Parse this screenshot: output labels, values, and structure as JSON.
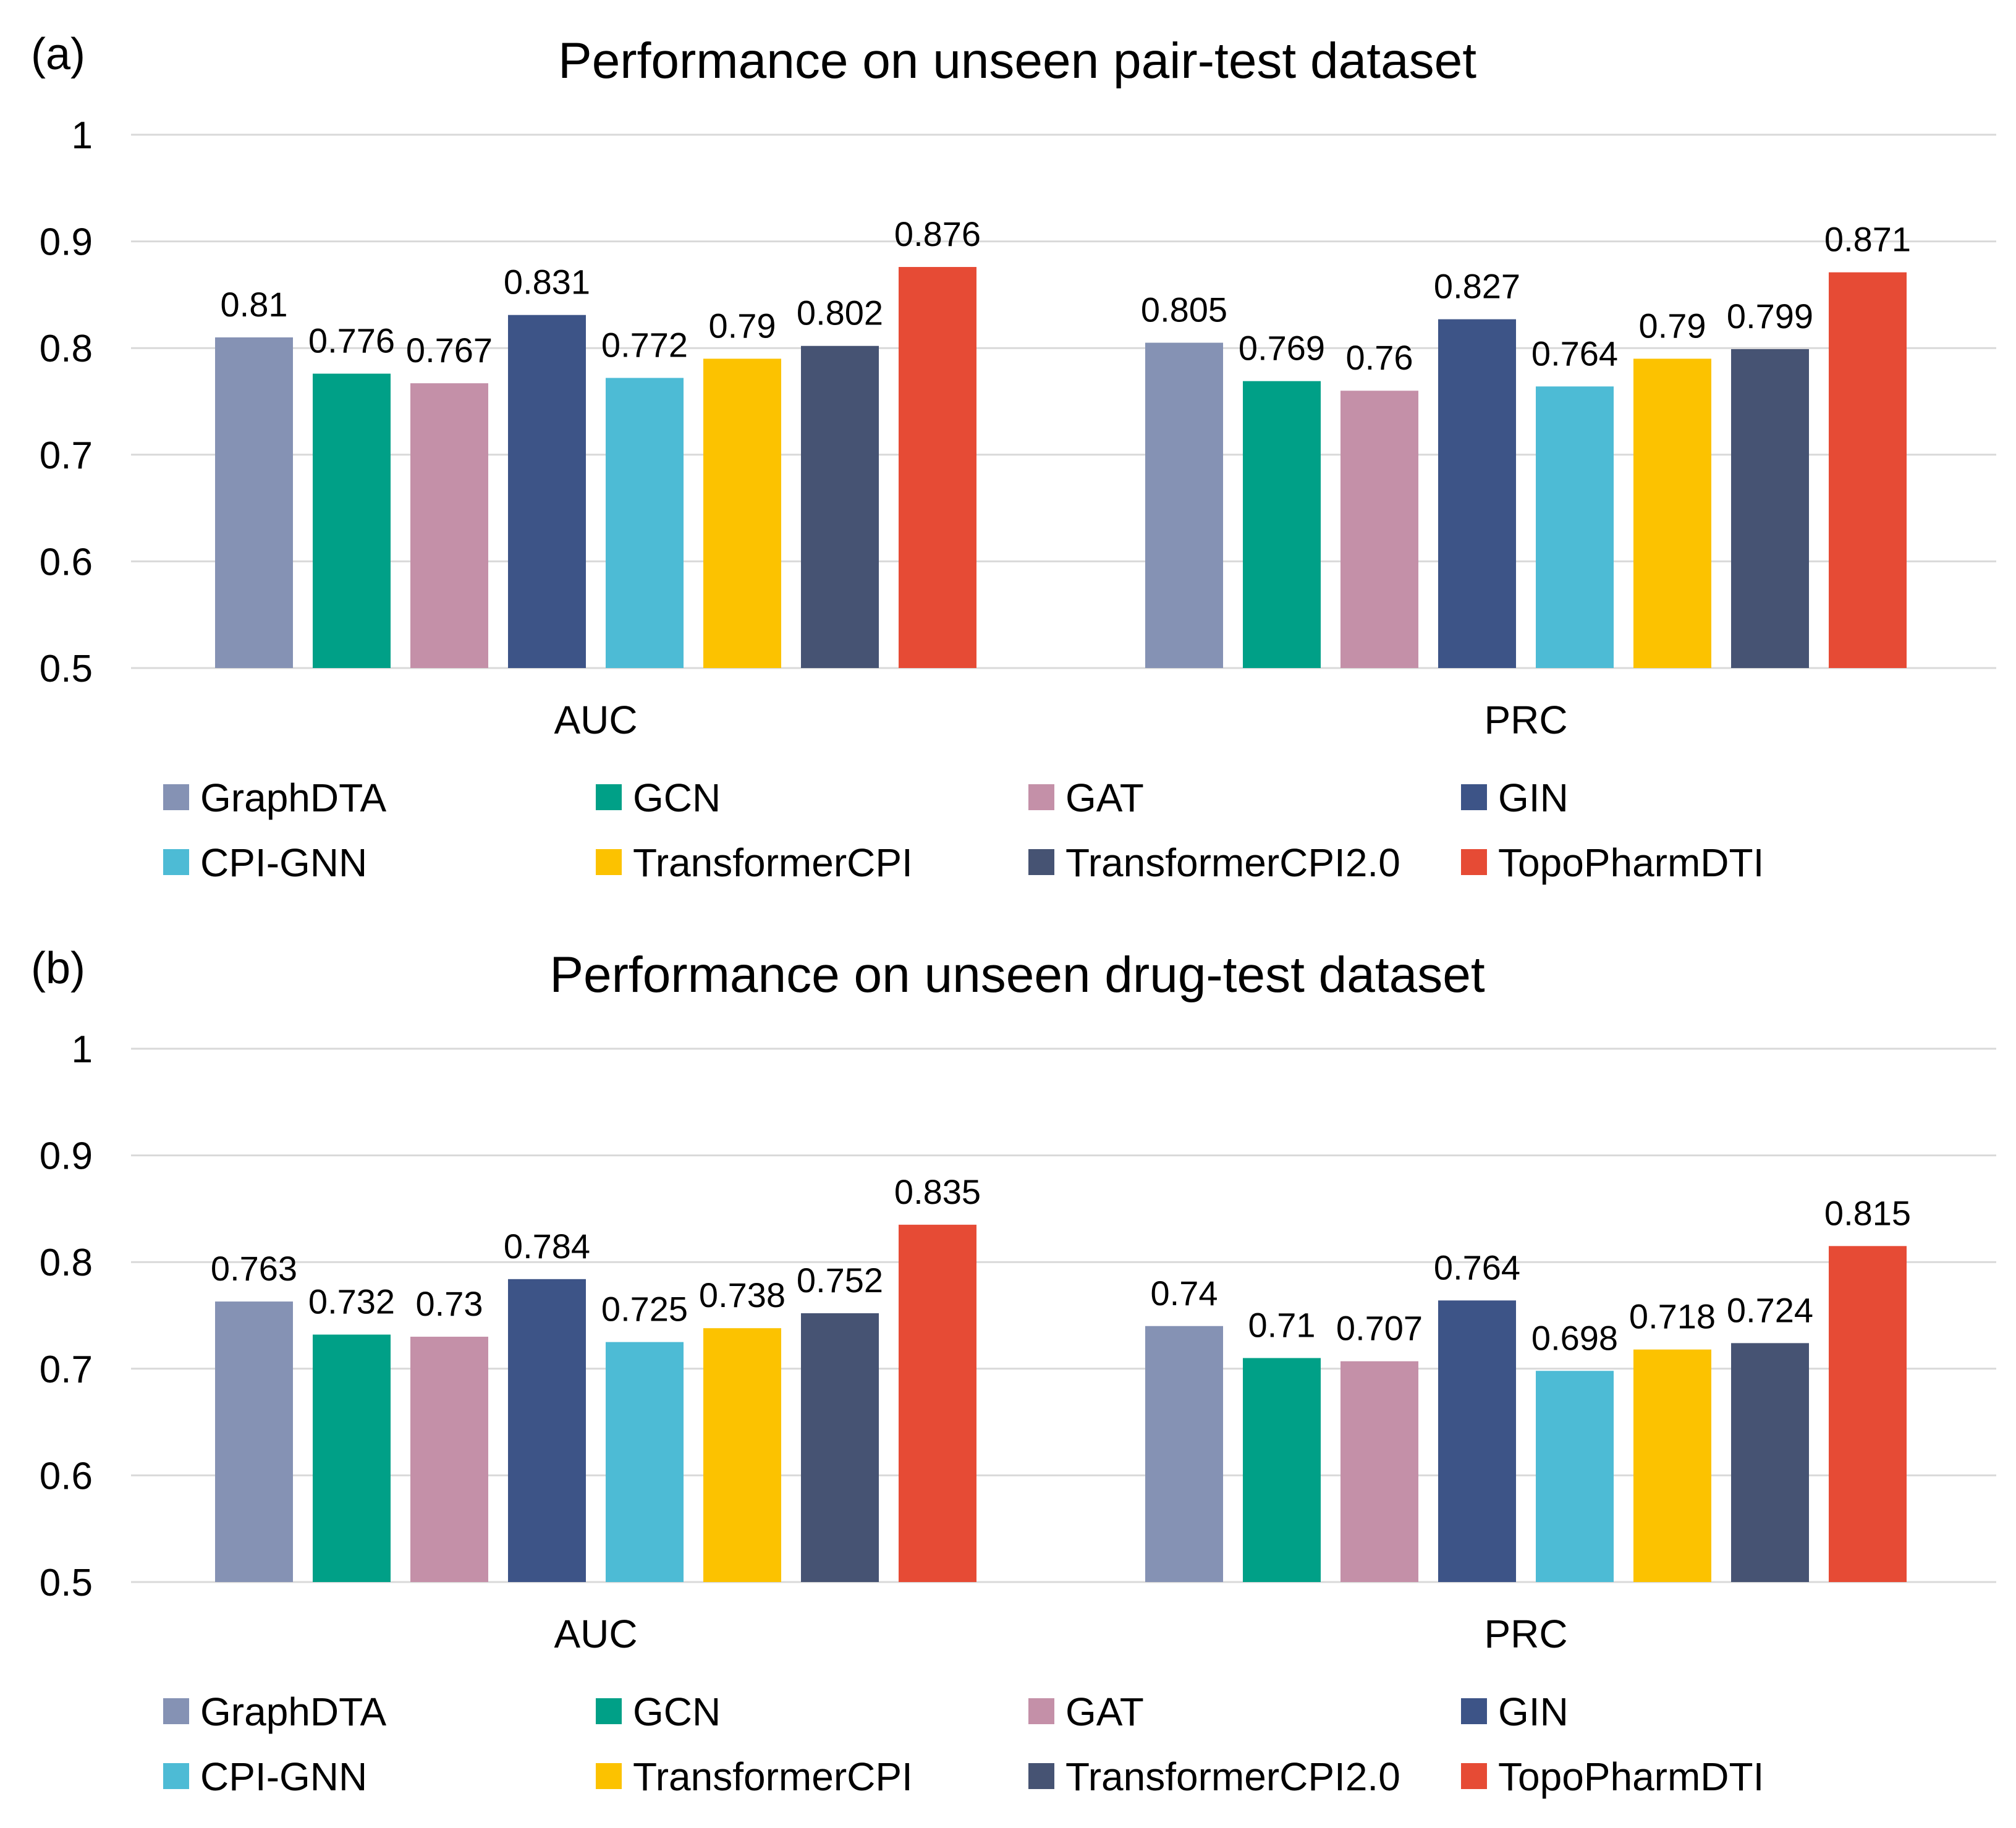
{
  "series_colors": {
    "GraphDTA": "#8592b4",
    "GCN": "#00a087",
    "GAT": "#c490a8",
    "GIN": "#3d5487",
    "CPI-GNN": "#4dbbd5",
    "TransformerCPI": "#fcc200",
    "TransformerCPI2.0": "#465373",
    "TopoPharmDTI": "#e64b35"
  },
  "chart_data": [
    {
      "panel": "(a)",
      "type": "bar",
      "title": "Performance on unseen pair-test dataset",
      "xlabel": "",
      "ylabel": "",
      "categories": [
        "AUC",
        "PRC"
      ],
      "ylim": [
        0.5,
        1
      ],
      "yticks": [
        "0.5",
        "0.6",
        "0.7",
        "0.8",
        "0.9",
        "1"
      ],
      "grid": true,
      "legend_position": "bottom",
      "series": [
        {
          "name": "GraphDTA",
          "values": [
            0.81,
            0.805
          ],
          "labels": [
            "0.81",
            "0.805"
          ]
        },
        {
          "name": "GCN",
          "values": [
            0.776,
            0.769
          ],
          "labels": [
            "0.776",
            "0.769"
          ]
        },
        {
          "name": "GAT",
          "values": [
            0.767,
            0.76
          ],
          "labels": [
            "0.767",
            "0.76"
          ]
        },
        {
          "name": "GIN",
          "values": [
            0.831,
            0.827
          ],
          "labels": [
            "0.831",
            "0.827"
          ]
        },
        {
          "name": "CPI-GNN",
          "values": [
            0.772,
            0.764
          ],
          "labels": [
            "0.772",
            "0.764"
          ]
        },
        {
          "name": "TransformerCPI",
          "values": [
            0.79,
            0.79
          ],
          "labels": [
            "0.79",
            "0.79"
          ]
        },
        {
          "name": "TransformerCPI2.0",
          "values": [
            0.802,
            0.799
          ],
          "labels": [
            "0.802",
            "0.799"
          ]
        },
        {
          "name": "TopoPharmDTI",
          "values": [
            0.876,
            0.871
          ],
          "labels": [
            "0.876",
            "0.871"
          ]
        }
      ]
    },
    {
      "panel": "(b)",
      "type": "bar",
      "title": "Performance on unseen drug-test dataset",
      "xlabel": "",
      "ylabel": "",
      "categories": [
        "AUC",
        "PRC"
      ],
      "ylim": [
        0.5,
        1
      ],
      "yticks": [
        "0.5",
        "0.6",
        "0.7",
        "0.8",
        "0.9",
        "1"
      ],
      "grid": true,
      "legend_position": "bottom",
      "series": [
        {
          "name": "GraphDTA",
          "values": [
            0.763,
            0.74
          ],
          "labels": [
            "0.763",
            "0.74"
          ]
        },
        {
          "name": "GCN",
          "values": [
            0.732,
            0.71
          ],
          "labels": [
            "0.732",
            "0.71"
          ]
        },
        {
          "name": "GAT",
          "values": [
            0.73,
            0.707
          ],
          "labels": [
            "0.73",
            "0.707"
          ]
        },
        {
          "name": "GIN",
          "values": [
            0.784,
            0.764
          ],
          "labels": [
            "0.784",
            "0.764"
          ]
        },
        {
          "name": "CPI-GNN",
          "values": [
            0.725,
            0.698
          ],
          "labels": [
            "0.725",
            "0.698"
          ]
        },
        {
          "name": "TransformerCPI",
          "values": [
            0.738,
            0.718
          ],
          "labels": [
            "0.738",
            "0.718"
          ]
        },
        {
          "name": "TransformerCPI2.0",
          "values": [
            0.752,
            0.724
          ],
          "labels": [
            "0.752",
            "0.724"
          ]
        },
        {
          "name": "TopoPharmDTI",
          "values": [
            0.835,
            0.815
          ],
          "labels": [
            "0.835",
            "0.815"
          ]
        }
      ]
    }
  ]
}
